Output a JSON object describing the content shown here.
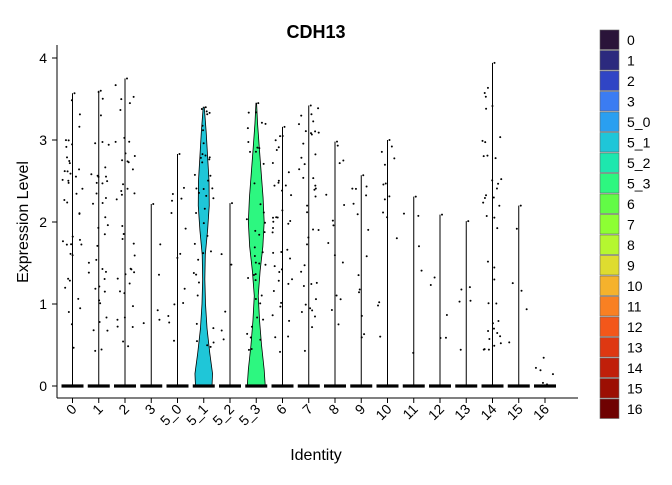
{
  "chart_data": {
    "type": "violin",
    "title": "CDH13",
    "xlabel": "Identity",
    "ylabel": "Expression Level",
    "ylim": [
      -0.05,
      4.2
    ],
    "yticks": [
      0,
      1,
      2,
      3,
      4
    ],
    "grid": false,
    "legend_position": "right",
    "categories": [
      "0",
      "1",
      "2",
      "3",
      "5_0",
      "5_1",
      "5_2",
      "5_3",
      "6",
      "7",
      "8",
      "9",
      "10",
      "11",
      "12",
      "13",
      "14",
      "15",
      "16"
    ],
    "colors": [
      "#2a1439",
      "#2c2a7e",
      "#3045c5",
      "#3b7cf2",
      "#2a9ff0",
      "#1fc6d8",
      "#1de7ae",
      "#2df780",
      "#62fb46",
      "#8dff33",
      "#b5f730",
      "#dedc30",
      "#f5b22c",
      "#f98022",
      "#f3571a",
      "#de3812",
      "#c01f0a",
      "#9c0f03",
      "#6f0202"
    ],
    "max_values": [
      3.57,
      3.6,
      3.75,
      2.22,
      2.83,
      3.4,
      2.23,
      3.45,
      3.16,
      3.42,
      2.98,
      2.57,
      3.0,
      2.31,
      2.09,
      2.01,
      3.94,
      2.2,
      0.02
    ],
    "violin_shapes": {
      "5_1": [
        [
          0,
          0.75
        ],
        [
          0.15,
          0.8
        ],
        [
          0.4,
          0.55
        ],
        [
          0.7,
          0.3
        ],
        [
          1.0,
          0.16
        ],
        [
          1.3,
          0.1
        ],
        [
          1.6,
          0.14
        ],
        [
          1.9,
          0.35
        ],
        [
          2.2,
          0.5
        ],
        [
          2.5,
          0.48
        ],
        [
          2.8,
          0.35
        ],
        [
          3.1,
          0.22
        ],
        [
          3.4,
          0.05
        ]
      ],
      "5_3": [
        [
          0,
          0.82
        ],
        [
          0.2,
          0.72
        ],
        [
          0.5,
          0.48
        ],
        [
          0.8,
          0.3
        ],
        [
          1.1,
          0.18
        ],
        [
          1.4,
          0.35
        ],
        [
          1.7,
          0.6
        ],
        [
          2.0,
          0.72
        ],
        [
          2.3,
          0.62
        ],
        [
          2.6,
          0.45
        ],
        [
          2.9,
          0.28
        ],
        [
          3.2,
          0.12
        ],
        [
          3.45,
          0.03
        ]
      ]
    }
  }
}
